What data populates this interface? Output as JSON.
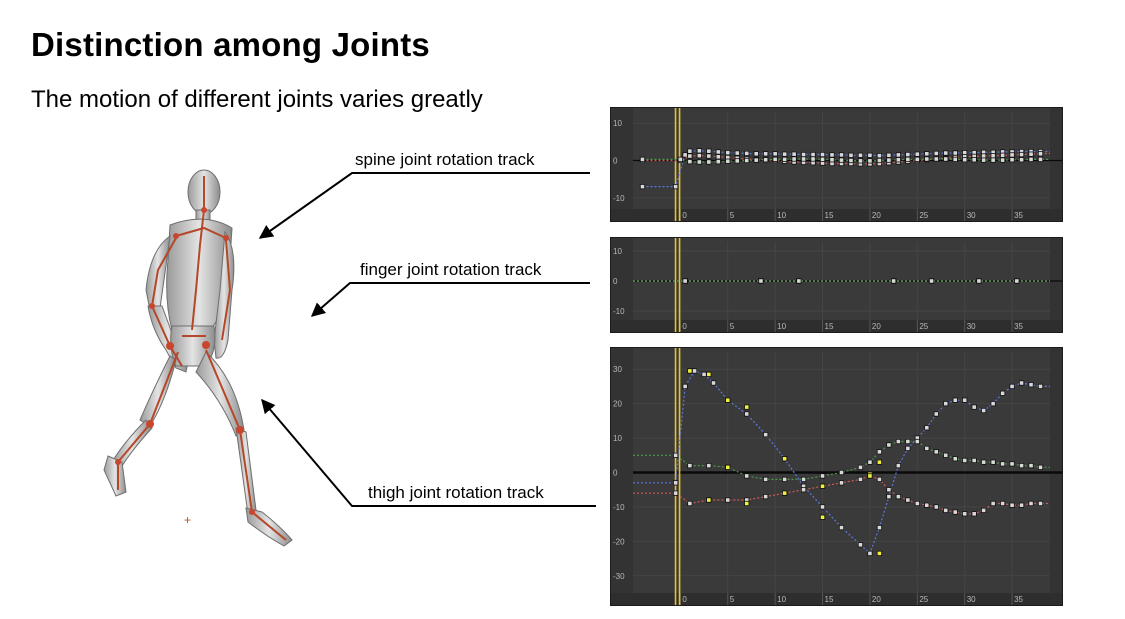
{
  "slide": {
    "title": "Distinction among Joints",
    "subtitle": "The motion of different joints varies greatly"
  },
  "callouts": {
    "spine": "spine joint rotation track",
    "finger": "finger joint rotation track",
    "thigh": "thigh joint rotation track"
  },
  "figure_icon": "walking-mannequin-with-skeleton",
  "colors": {
    "panel_bg": "#3a3a3a",
    "x_series": "#d05a55",
    "y_series": "#4c9a4a",
    "z_series": "#5b78e0",
    "keyframe_selected": "#f0f040",
    "playhead": "#e8c22a"
  },
  "chart_data": [
    {
      "type": "line",
      "name": "spine joint rotation track",
      "xlim": [
        -5,
        39
      ],
      "ylim": [
        -13,
        13
      ],
      "x_ticks": [
        0,
        5,
        10,
        15,
        20,
        25,
        30,
        35
      ],
      "y_ticks": [
        10,
        0,
        -10
      ],
      "x_tick_labels": [
        "0",
        "5",
        "10",
        "15",
        "20",
        "25",
        "30",
        "35"
      ],
      "y_tick_labels": [
        "10",
        "0",
        "-10"
      ],
      "grid": true,
      "playhead_frame": -0.3,
      "series": [
        {
          "color_key": "z_series",
          "x": [
            -4,
            -0.5,
            0.5,
            1,
            2,
            3,
            4,
            5,
            6,
            7,
            8,
            9,
            10,
            11,
            12,
            13,
            14,
            15,
            16,
            17,
            18,
            19,
            20,
            21,
            22,
            23,
            24,
            25,
            26,
            27,
            28,
            29,
            30,
            31,
            32,
            33,
            34,
            35,
            36,
            37,
            38,
            39
          ],
          "y": [
            -7,
            -7,
            1.5,
            2.5,
            2.6,
            2.5,
            2.3,
            2.1,
            2,
            1.9,
            1.8,
            1.8,
            1.8,
            1.7,
            1.7,
            1.6,
            1.6,
            1.6,
            1.5,
            1.5,
            1.4,
            1.4,
            1.4,
            1.3,
            1.4,
            1.5,
            1.6,
            1.7,
            1.8,
            1.9,
            2,
            2,
            2.1,
            2.1,
            2.2,
            2.2,
            2.3,
            2.3,
            2.4,
            2.4,
            2.4,
            2.4
          ]
        },
        {
          "color_key": "x_series",
          "x": [
            -4,
            0,
            1,
            2,
            3,
            4,
            5,
            6,
            7,
            8,
            9,
            10,
            11,
            12,
            13,
            14,
            15,
            16,
            17,
            18,
            19,
            20,
            21,
            22,
            23,
            24,
            25,
            26,
            27,
            28,
            29,
            30,
            31,
            32,
            33,
            34,
            35,
            36,
            37,
            38,
            39
          ],
          "y": [
            0,
            0,
            1.2,
            1.3,
            1.2,
            1,
            0.8,
            0.6,
            0.4,
            0.3,
            0.2,
            0,
            -0.2,
            -0.4,
            -0.5,
            -0.6,
            -0.7,
            -0.8,
            -0.8,
            -0.8,
            -0.9,
            -0.9,
            -0.8,
            -0.6,
            -0.4,
            -0.2,
            0,
            0.2,
            0.4,
            0.6,
            0.8,
            1,
            1.1,
            1.2,
            1.3,
            1.4,
            1.5,
            1.6,
            1.7,
            1.8,
            1.9
          ]
        },
        {
          "color_key": "y_series",
          "x": [
            -4,
            0,
            1,
            2,
            3,
            4,
            5,
            6,
            7,
            8,
            9,
            10,
            11,
            12,
            13,
            14,
            15,
            16,
            17,
            18,
            19,
            20,
            21,
            22,
            23,
            24,
            25,
            26,
            27,
            28,
            29,
            30,
            31,
            32,
            33,
            34,
            35,
            36,
            37,
            38,
            39
          ],
          "y": [
            0.3,
            0.3,
            -0.3,
            -0.4,
            -0.4,
            -0.3,
            -0.2,
            -0.1,
            0,
            0.1,
            0.2,
            0.3,
            0.3,
            0.4,
            0.4,
            0.4,
            0.3,
            0.2,
            0.1,
            0,
            -0.1,
            -0.1,
            0,
            0.1,
            0.2,
            0.3,
            0.3,
            0.4,
            0.4,
            0.4,
            0.3,
            0.2,
            0.2,
            0.1,
            0.1,
            0.1,
            0.2,
            0.2,
            0.3,
            0.3,
            0.3
          ]
        }
      ]
    },
    {
      "type": "line",
      "name": "finger joint rotation track",
      "xlim": [
        -5,
        39
      ],
      "ylim": [
        -13,
        13
      ],
      "x_ticks": [
        0,
        5,
        10,
        15,
        20,
        25,
        30,
        35
      ],
      "y_ticks": [
        10,
        0,
        -10
      ],
      "x_tick_labels": [
        "0",
        "5",
        "10",
        "15",
        "20",
        "25",
        "30",
        "35"
      ],
      "y_tick_labels": [
        "10",
        "0",
        "-10"
      ],
      "grid": true,
      "playhead_frame": -0.3,
      "series": [
        {
          "color_key": "z_series",
          "x": [
            -5,
            0.5,
            8.5,
            12.5,
            22.5,
            26.5,
            31.5,
            35.5,
            39
          ],
          "y": [
            0,
            0,
            0,
            0,
            0,
            0,
            0,
            0,
            0
          ]
        },
        {
          "color_key": "x_series",
          "x": [
            -5,
            0.5,
            8.5,
            12.5,
            22.5,
            26.5,
            31.5,
            35.5,
            39
          ],
          "y": [
            0,
            0,
            0,
            0,
            0,
            0,
            0,
            0,
            0
          ]
        },
        {
          "color_key": "y_series",
          "x": [
            -5,
            0.5,
            8.5,
            12.5,
            22.5,
            26.5,
            31.5,
            35.5,
            39
          ],
          "y": [
            0,
            0,
            0,
            0,
            0,
            0,
            0,
            0,
            0
          ]
        }
      ]
    },
    {
      "type": "line",
      "name": "thigh joint rotation track",
      "xlim": [
        -5,
        39
      ],
      "ylim": [
        -35,
        35
      ],
      "x_ticks": [
        0,
        5,
        10,
        15,
        20,
        25,
        30,
        35
      ],
      "y_ticks": [
        30,
        20,
        10,
        0,
        -10,
        -20,
        -30
      ],
      "x_tick_labels": [
        "0",
        "5",
        "10",
        "15",
        "20",
        "25",
        "30",
        "35"
      ],
      "y_tick_labels": [
        "30",
        "20",
        "10",
        "0",
        "-10",
        "-20",
        "-30"
      ],
      "grid": true,
      "playhead_frame": -0.3,
      "series": [
        {
          "color_key": "z_series",
          "x": [
            -5,
            -0.5,
            0.5,
            1.5,
            2.5,
            3.5,
            5,
            7,
            9,
            11,
            13,
            15,
            17,
            19,
            20,
            21,
            22,
            23,
            24,
            25,
            26,
            27,
            28,
            29,
            30,
            31,
            32,
            33,
            34,
            35,
            36,
            37,
            38,
            39
          ],
          "y": [
            -3,
            -3,
            25,
            29.5,
            28.5,
            26,
            21,
            17,
            11,
            4,
            -4,
            -10,
            -16,
            -21,
            -23.5,
            -16,
            -7,
            2,
            7,
            10,
            13,
            17,
            20,
            21,
            21,
            19,
            18,
            20,
            23,
            25,
            26,
            25.5,
            25,
            25
          ]
        },
        {
          "color_key": "y_series",
          "x": [
            -5,
            -0.5,
            1,
            3,
            5,
            7,
            9,
            11,
            13,
            15,
            17,
            19,
            20,
            21,
            22,
            23,
            24,
            25,
            26,
            27,
            28,
            29,
            30,
            31,
            32,
            33,
            34,
            35,
            36,
            37,
            38,
            39
          ],
          "y": [
            5,
            5,
            2,
            2,
            1.5,
            -1,
            -2,
            -2,
            -2,
            -1,
            0,
            1.5,
            3,
            6,
            8,
            9,
            9,
            9,
            7,
            6,
            5,
            4,
            3.5,
            3.5,
            3,
            3,
            2.5,
            2.5,
            2,
            2,
            1.5,
            1.5
          ]
        },
        {
          "color_key": "x_series",
          "x": [
            -5,
            -0.5,
            1,
            3,
            5,
            7,
            9,
            11,
            13,
            15,
            17,
            19,
            20,
            21,
            22,
            23,
            24,
            25,
            26,
            27,
            28,
            29,
            30,
            31,
            32,
            33,
            34,
            35,
            36,
            37,
            38,
            39
          ],
          "y": [
            -6,
            -6,
            -9,
            -8,
            -8,
            -8,
            -7,
            -6,
            -5,
            -4,
            -3,
            -2,
            -1,
            -2,
            -5,
            -7,
            -8,
            -9,
            -9.5,
            -10,
            -11,
            -11.5,
            -12,
            -12,
            -11,
            -9,
            -9,
            -9.5,
            -9.5,
            -9,
            -9,
            -9
          ]
        },
        {
          "color_key": "keyframe_selected",
          "markers_only": true,
          "x": [
            1,
            3,
            5,
            7,
            11,
            15,
            20,
            21,
            7,
            11,
            15,
            20,
            21,
            3,
            5
          ],
          "y": [
            29.5,
            28.5,
            21,
            19,
            4,
            -13,
            -0.5,
            -23.5,
            -9,
            -6,
            -4,
            -1,
            3,
            -8,
            1.5
          ]
        }
      ]
    }
  ]
}
